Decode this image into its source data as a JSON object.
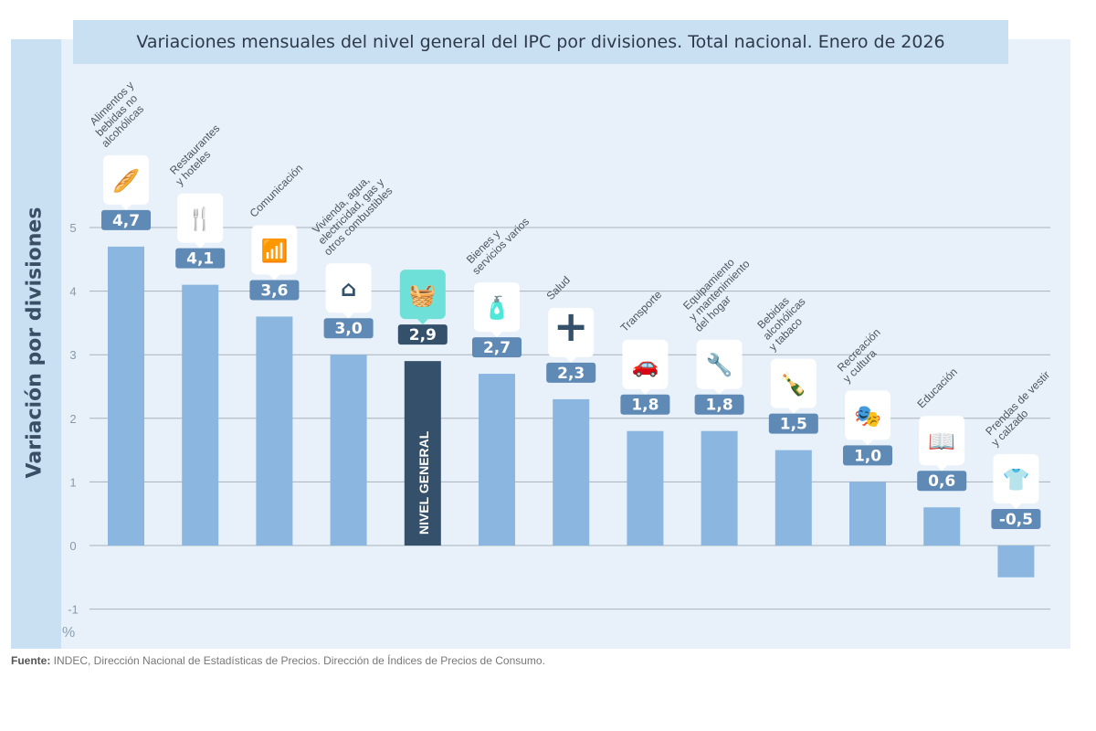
{
  "chart_data": {
    "type": "bar",
    "title": "Variaciones mensuales del nivel general del IPC por divisiones. Total nacional. Enero de 2026",
    "ylabel": "Variación por divisiones",
    "unit": "%",
    "ylim": [
      -1,
      5
    ],
    "yticks": [
      "-1",
      "0",
      "1",
      "2",
      "3",
      "4",
      "5"
    ],
    "grid": true,
    "categories": [
      "Alimentos y bebidas no alcohólicas",
      "Restaurantes y hoteles",
      "Comunicación",
      "Vivienda, agua, electricidad, gas y otros combustibles",
      "NIVEL GENERAL",
      "Bienes y servicios varios",
      "Salud",
      "Transporte",
      "Equipamiento y mantenimiento del hogar",
      "Bebidas alcohólicas y tabaco",
      "Recreación y cultura",
      "Educación",
      "Prendas de vestir y calzado"
    ],
    "label_lines": [
      [
        "Alimentos y",
        "bebidas no",
        "alcohólicas"
      ],
      [
        "Restaurantes",
        "y hoteles"
      ],
      [
        "Comunicación"
      ],
      [
        "Vivienda, agua,",
        "electricidad, gas y",
        "otros combustibles"
      ],
      [],
      [
        "Bienes y",
        "servicios varios"
      ],
      [
        "Salud"
      ],
      [
        "Transporte"
      ],
      [
        "Equipamiento",
        "y mantenimiento",
        "del hogar"
      ],
      [
        "Bebidas",
        "alcohólicas",
        "y tabaco"
      ],
      [
        "Recreación",
        "y cultura"
      ],
      [
        "Educación"
      ],
      [
        "Prendas de vestir",
        "y calzado"
      ]
    ],
    "values": [
      4.7,
      4.1,
      3.6,
      3.0,
      2.9,
      2.7,
      2.3,
      1.8,
      1.8,
      1.5,
      1.0,
      0.6,
      -0.5
    ],
    "value_labels": [
      "4,7",
      "4,1",
      "3,6",
      "3,0",
      "2,9",
      "2,7",
      "2,3",
      "1,8",
      "1,8",
      "1,5",
      "1,0",
      "0,6",
      "-0,5"
    ],
    "icons": [
      "food-icon",
      "restaurant-hotel-icon",
      "wifi-icon",
      "house-energy-icon",
      "basket-icon",
      "personal-care-icon",
      "health-cross-icon",
      "car-repair-icon",
      "tools-icon",
      "bottle-icon",
      "theater-masks-icon",
      "book-icon",
      "shirt-icon"
    ],
    "highlight_index": 4,
    "highlight_bar_text": "NIVEL GENERAL",
    "colors": {
      "bar": "#8ab6e0",
      "highlight_bar": "#34506b",
      "badge": "#5f8ab6",
      "highlight_badge": "#34506b",
      "highlight_icon_bg": "#6ee0d8"
    }
  },
  "source": {
    "label": "Fuente:",
    "text": " INDEC, Dirección Nacional de Estadísticas de Precios. Dirección de Índices de Precios de Consumo."
  }
}
